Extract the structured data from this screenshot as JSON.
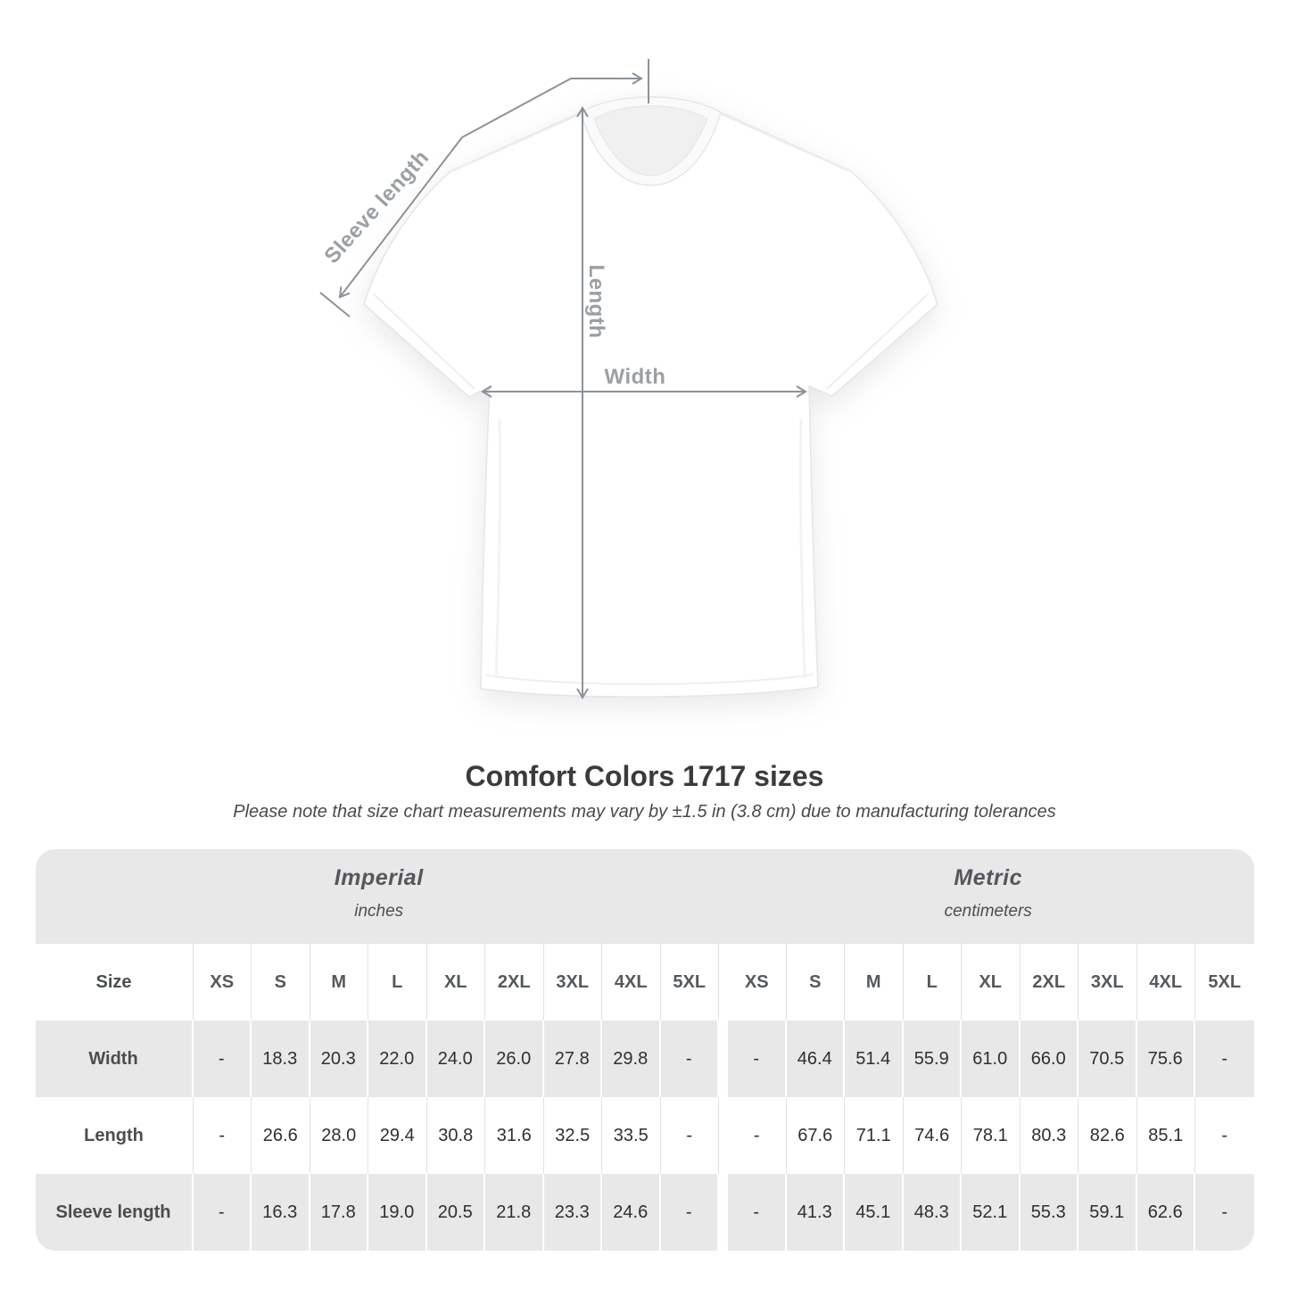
{
  "figure": {
    "sleeve_label": "Sleeve length",
    "length_label": "Length",
    "width_label": "Width"
  },
  "title": "Comfort Colors 1717 sizes",
  "note": "Please note that size chart measurements may vary by ±1.5 in (3.8 cm) due to manufacturing tolerances",
  "table": {
    "size_label": "Size",
    "unit_groups": [
      {
        "name": "Imperial",
        "unit": "inches"
      },
      {
        "name": "Metric",
        "unit": "centimeters"
      }
    ],
    "sizes": [
      "XS",
      "S",
      "M",
      "L",
      "XL",
      "2XL",
      "3XL",
      "4XL",
      "5XL"
    ],
    "rows": [
      {
        "label": "Width",
        "imperial": [
          "-",
          "18.3",
          "20.3",
          "22.0",
          "24.0",
          "26.0",
          "27.8",
          "29.8",
          "-"
        ],
        "metric": [
          "-",
          "46.4",
          "51.4",
          "55.9",
          "61.0",
          "66.0",
          "70.5",
          "75.6",
          "-"
        ]
      },
      {
        "label": "Length",
        "imperial": [
          "-",
          "26.6",
          "28.0",
          "29.4",
          "30.8",
          "31.6",
          "32.5",
          "33.5",
          "-"
        ],
        "metric": [
          "-",
          "67.6",
          "71.1",
          "74.6",
          "78.1",
          "80.3",
          "82.6",
          "85.1",
          "-"
        ]
      },
      {
        "label": "Sleeve length",
        "imperial": [
          "-",
          "16.3",
          "17.8",
          "19.0",
          "20.5",
          "21.8",
          "23.3",
          "24.6",
          "-"
        ],
        "metric": [
          "-",
          "41.3",
          "45.1",
          "48.3",
          "52.1",
          "55.3",
          "59.1",
          "62.6",
          "-"
        ]
      }
    ]
  },
  "colors": {
    "band_gray": "#e8e8e9",
    "measure_line": "#8c9298",
    "measure_label": "#9ba0a4"
  }
}
